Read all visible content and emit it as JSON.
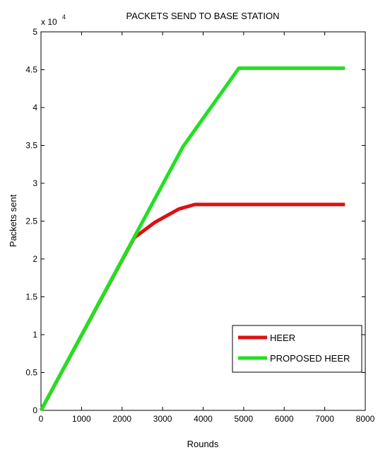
{
  "chart_data": {
    "type": "line",
    "title": "PACKETS SEND TO BASE STATION",
    "xlabel": "Rounds",
    "ylabel": "Packets sent",
    "y_multiplier_base": "x 10",
    "y_multiplier_exp": "4",
    "xlim": [
      0,
      8000
    ],
    "ylim": [
      0,
      5
    ],
    "xticks": [
      0,
      1000,
      2000,
      3000,
      4000,
      5000,
      6000,
      7000,
      8000
    ],
    "xtick_labels": [
      "0",
      "1000",
      "2000",
      "3000",
      "4000",
      "5000",
      "6000",
      "7000",
      "8000"
    ],
    "yticks": [
      0,
      0.5,
      1,
      1.5,
      2,
      2.5,
      3,
      3.5,
      4,
      4.5,
      5
    ],
    "ytick_labels": [
      "0",
      "0.5",
      "1",
      "1.5",
      "2",
      "2.5",
      "3",
      "3.5",
      "4",
      "4.5",
      "5"
    ],
    "grid": false,
    "legend_position": "bottom-right",
    "series": [
      {
        "name": "HEER",
        "color": "#dd1111",
        "x": [
          0,
          2300,
          2800,
          3400,
          3800,
          7500
        ],
        "y": [
          0,
          2.28,
          2.48,
          2.66,
          2.72,
          2.72
        ]
      },
      {
        "name": "PROPOSED HEER",
        "color": "#22e022",
        "x": [
          0,
          3500,
          4880,
          5000,
          7500
        ],
        "y": [
          0,
          3.48,
          4.52,
          4.52,
          4.52
        ]
      }
    ]
  }
}
